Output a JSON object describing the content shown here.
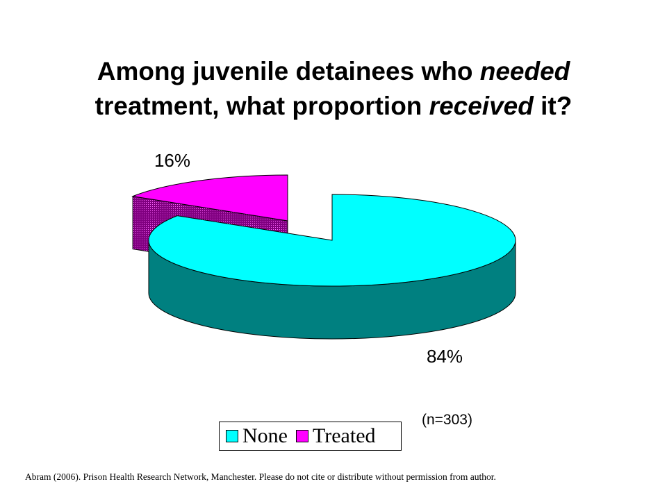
{
  "title": {
    "part1": "Among juvenile detainees who ",
    "em1": "needed",
    "part2": " treatment, what proportion ",
    "em2": "received",
    "part3": " it?"
  },
  "chart_data": {
    "type": "pie",
    "categories": [
      "None",
      "Treated"
    ],
    "values": [
      84,
      16
    ],
    "data_labels": [
      "84%",
      "16%"
    ],
    "colors": {
      "None": "#00ffff",
      "Treated": "#ff00ff"
    },
    "side_colors": {
      "None": "#008080",
      "Treated": "#800080"
    },
    "legend_position": "bottom",
    "exploded": true,
    "three_d": true
  },
  "sample_note": "(n=303)",
  "legend": {
    "items": [
      {
        "label": "None",
        "color": "#00ffff"
      },
      {
        "label": "Treated",
        "color": "#ff00ff"
      }
    ]
  },
  "footer": "Abram (2006).  Prison Health Research Network, Manchester.  Please do not cite or distribute without permission  from author."
}
